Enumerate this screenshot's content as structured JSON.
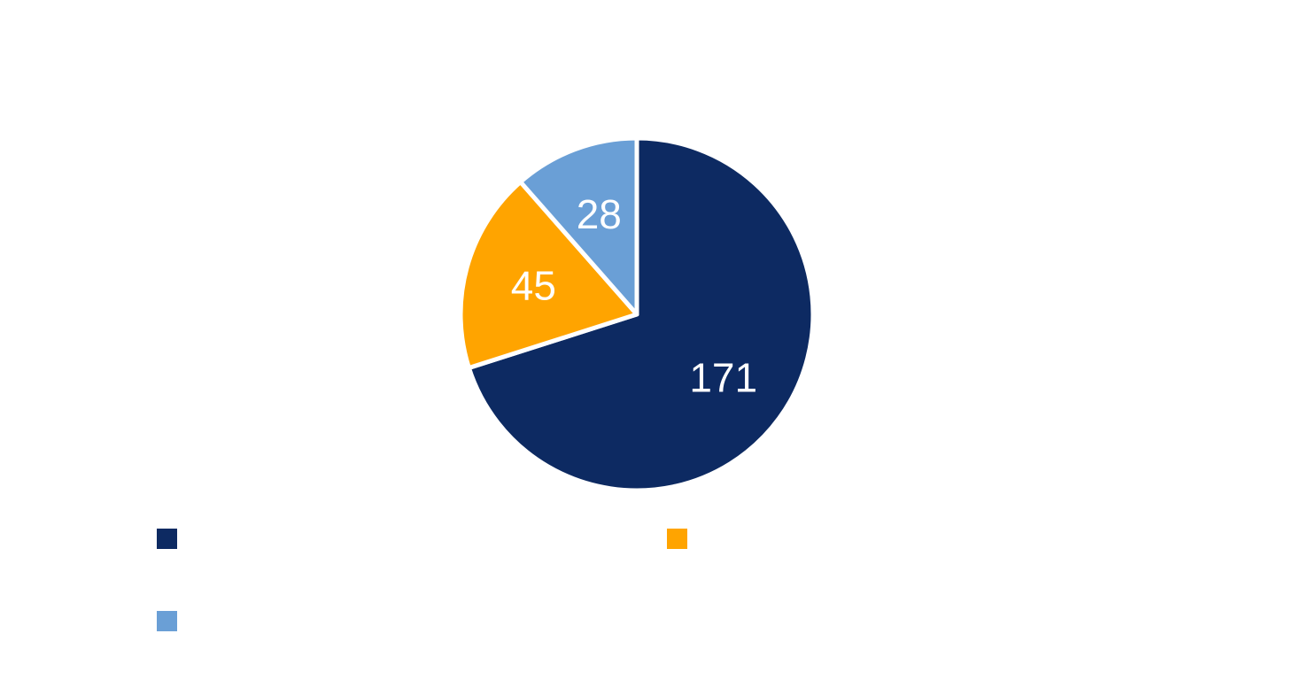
{
  "chart_data": {
    "type": "pie",
    "values": [
      171,
      45,
      28
    ],
    "labels": [
      "",
      "",
      ""
    ],
    "data_labels": [
      "171",
      "45",
      "28"
    ],
    "colors": [
      "#0d2a62",
      "#ffa400",
      "#6a9fd6"
    ],
    "start_angle": "12 o'clock",
    "direction": "clockwise",
    "legend": {
      "placement": "bottom",
      "entries": [
        "",
        "",
        ""
      ]
    },
    "title": ""
  }
}
